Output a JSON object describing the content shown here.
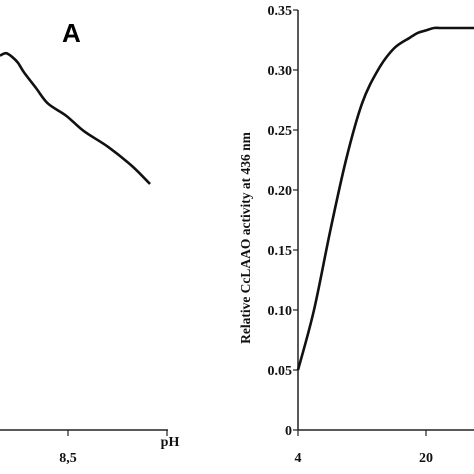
{
  "chart_data": [
    {
      "type": "line",
      "panel_label": "A",
      "xlabel": "pH",
      "ylabel": "",
      "x_ticks": [
        {
          "value": 8.5,
          "label": "8,5"
        }
      ],
      "xlim": [
        7.8,
        9.2
      ],
      "ylim": [
        0,
        0.35
      ],
      "series": [
        {
          "x": [
            7.8,
            7.85,
            7.9,
            7.95,
            8.0,
            8.1,
            8.2,
            8.35,
            8.5,
            8.7,
            8.9,
            9.05
          ],
          "y": [
            0.312,
            0.314,
            0.311,
            0.306,
            0.298,
            0.285,
            0.272,
            0.262,
            0.249,
            0.236,
            0.22,
            0.205
          ]
        }
      ],
      "grid": false,
      "color": "#111111"
    },
    {
      "type": "line",
      "ylabel": "Relative CcLAAO activity at 436 nm",
      "xlabel": "",
      "x_ticks": [
        {
          "value": 4,
          "label": "4"
        },
        {
          "value": 20,
          "label": "20"
        }
      ],
      "y_ticks": [
        {
          "value": 0,
          "label": "0"
        },
        {
          "value": 0.05,
          "label": "0.05"
        },
        {
          "value": 0.1,
          "label": "0.10"
        },
        {
          "value": 0.15,
          "label": "0.15"
        },
        {
          "value": 0.2,
          "label": "0.20"
        },
        {
          "value": 0.25,
          "label": "0.25"
        },
        {
          "value": 0.3,
          "label": "0.30"
        },
        {
          "value": 0.35,
          "label": "0.35"
        }
      ],
      "xlim": [
        4,
        26
      ],
      "ylim": [
        0,
        0.35
      ],
      "series": [
        {
          "x": [
            4,
            6,
            8,
            10,
            12,
            14,
            16,
            18,
            19,
            20,
            21,
            22,
            24,
            26
          ],
          "y": [
            0.05,
            0.1,
            0.165,
            0.225,
            0.272,
            0.3,
            0.318,
            0.327,
            0.331,
            0.333,
            0.335,
            0.335,
            0.335,
            0.335
          ]
        }
      ],
      "grid": false,
      "color": "#111111"
    }
  ]
}
